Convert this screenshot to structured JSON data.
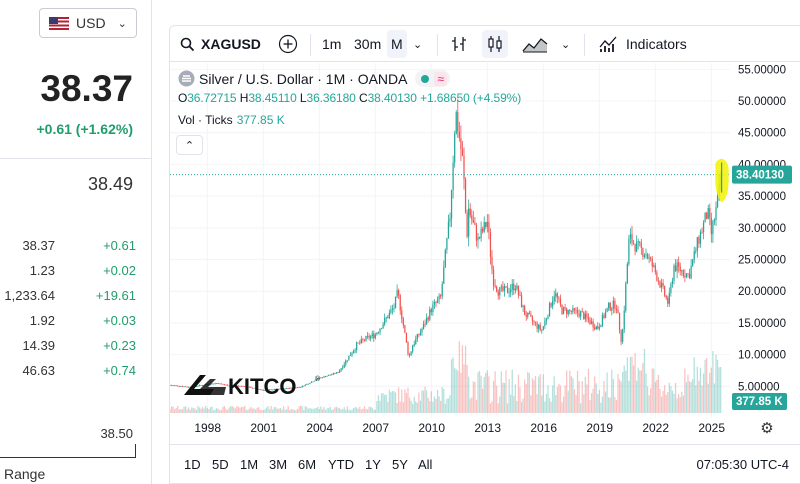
{
  "quote_panel": {
    "currency": "USD",
    "price": "38.37",
    "change": "+0.61 (+1.62%)",
    "secondary_value": "38.49",
    "rows": [
      {
        "value": "38.37",
        "change": "+0.61"
      },
      {
        "value": "1.23",
        "change": "+0.02"
      },
      {
        "value": "1,233.64",
        "change": "+19.61"
      },
      {
        "value": "1.92",
        "change": "+0.03"
      },
      {
        "value": "14.39",
        "change": "+0.23"
      },
      {
        "value": "46.63",
        "change": "+0.74"
      }
    ],
    "range_value": "38.50",
    "range_label": "Range"
  },
  "toolbar": {
    "symbol": "XAGUSD",
    "interval_1m": "1m",
    "interval_30m": "30m",
    "interval_month": "M",
    "indicators": "Indicators"
  },
  "legend": {
    "title": "Silver / U.S. Dollar · 1M · OANDA",
    "wave": "≈",
    "o_key": "O",
    "o": "36.72715",
    "h_key": "H",
    "h": "38.45110",
    "l_key": "L",
    "l": "36.36180",
    "c_key": "C",
    "c": "38.40130",
    "change": "+1.68650 (+4.59%)",
    "vol_label": "Vol · Ticks",
    "vol_value": "377.85 K"
  },
  "logo": "KITCO",
  "chart_data": {
    "type": "candlestick",
    "title": "Silver / U.S. Dollar · 1M · OANDA",
    "x_ticks": [
      "1998",
      "2001",
      "2004",
      "2007",
      "2010",
      "2013",
      "2016",
      "2019",
      "2022",
      "2025"
    ],
    "y_ticks": [
      "55.00000",
      "50.00000",
      "45.00000",
      "40.00000",
      "35.00000",
      "30.00000",
      "25.00000",
      "20.00000",
      "15.00000",
      "10.00000",
      "5.00000"
    ],
    "y_range": [
      0,
      56
    ],
    "x_range": [
      1996,
      2026
    ],
    "last_price_label": "38.40130",
    "last_volume_label": "377.85 K",
    "series_close": [
      [
        1996.0,
        5.2
      ],
      [
        1997.0,
        4.9
      ],
      [
        1998.0,
        5.3
      ],
      [
        1998.5,
        5.5
      ],
      [
        1999.0,
        5.2
      ],
      [
        2000.0,
        5.0
      ],
      [
        2001.0,
        4.4
      ],
      [
        2002.0,
        4.6
      ],
      [
        2003.0,
        4.9
      ],
      [
        2004.0,
        6.3
      ],
      [
        2005.0,
        7.2
      ],
      [
        2006.0,
        11.5
      ],
      [
        2006.5,
        12.5
      ],
      [
        2007.0,
        13.2
      ],
      [
        2008.0,
        17.5
      ],
      [
        2008.2,
        19.8
      ],
      [
        2008.8,
        9.5
      ],
      [
        2009.0,
        11.5
      ],
      [
        2009.5,
        14.0
      ],
      [
        2010.0,
        17.2
      ],
      [
        2010.5,
        19.0
      ],
      [
        2010.9,
        29.5
      ],
      [
        2011.0,
        32.0
      ],
      [
        2011.3,
        48.5
      ],
      [
        2011.7,
        40.0
      ],
      [
        2011.9,
        28.5
      ],
      [
        2012.0,
        33.0
      ],
      [
        2012.5,
        28.0
      ],
      [
        2013.0,
        31.0
      ],
      [
        2013.3,
        22.0
      ],
      [
        2013.6,
        20.0
      ],
      [
        2014.0,
        20.0
      ],
      [
        2014.5,
        21.0
      ],
      [
        2015.0,
        16.5
      ],
      [
        2015.9,
        13.8
      ],
      [
        2016.0,
        14.5
      ],
      [
        2016.6,
        19.8
      ],
      [
        2017.0,
        17.0
      ],
      [
        2018.0,
        16.5
      ],
      [
        2018.9,
        14.2
      ],
      [
        2019.5,
        17.5
      ],
      [
        2019.9,
        18.0
      ],
      [
        2020.2,
        11.8
      ],
      [
        2020.6,
        28.5
      ],
      [
        2021.0,
        27.0
      ],
      [
        2021.5,
        26.0
      ],
      [
        2022.0,
        23.0
      ],
      [
        2022.7,
        18.0
      ],
      [
        2023.0,
        24.0
      ],
      [
        2023.8,
        22.5
      ],
      [
        2024.3,
        28.0
      ],
      [
        2024.8,
        32.5
      ],
      [
        2025.0,
        29.0
      ],
      [
        2025.3,
        33.5
      ],
      [
        2025.55,
        38.4
      ]
    ]
  },
  "bottom_bar": {
    "ranges": [
      "1D",
      "5D",
      "1M",
      "3M",
      "6M",
      "YTD",
      "1Y",
      "5Y",
      "All"
    ],
    "clock": "07:05:30 UTC-4"
  }
}
